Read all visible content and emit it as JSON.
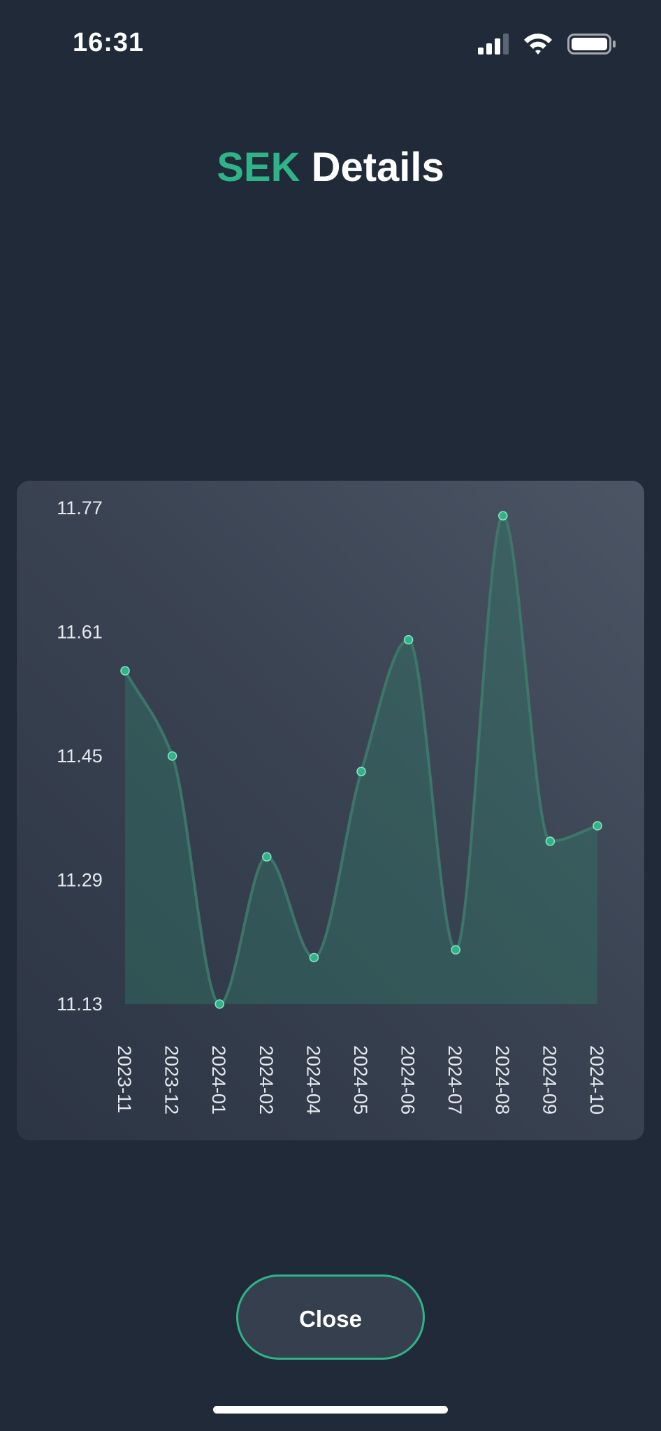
{
  "status_bar": {
    "time": "16:31",
    "icons": [
      "cellular-signal-icon",
      "wifi-icon",
      "battery-icon"
    ]
  },
  "header": {
    "currency": "SEK",
    "title_suffix": " Details"
  },
  "colors": {
    "background": "#202a38",
    "accent": "#2eb488",
    "line": "#3e7a6c",
    "area": "#2f7d6a"
  },
  "chart_data": {
    "type": "area",
    "categories": [
      "2023-11",
      "2023-12",
      "2024-01",
      "2024-02",
      "2024-04",
      "2024-05",
      "2024-06",
      "2024-07",
      "2024-08",
      "2024-09",
      "2024-10"
    ],
    "values": [
      11.56,
      11.45,
      11.13,
      11.32,
      11.19,
      11.43,
      11.6,
      11.2,
      11.76,
      11.34,
      11.36
    ],
    "y_ticks": [
      "11.77",
      "11.61",
      "11.45",
      "11.29",
      "11.13"
    ],
    "ylim": [
      11.13,
      11.77
    ],
    "title": "",
    "xlabel": "",
    "ylabel": "",
    "grid": false,
    "smooth": true,
    "x_label_rotation": "vertical"
  },
  "footer": {
    "close_label": "Close"
  }
}
